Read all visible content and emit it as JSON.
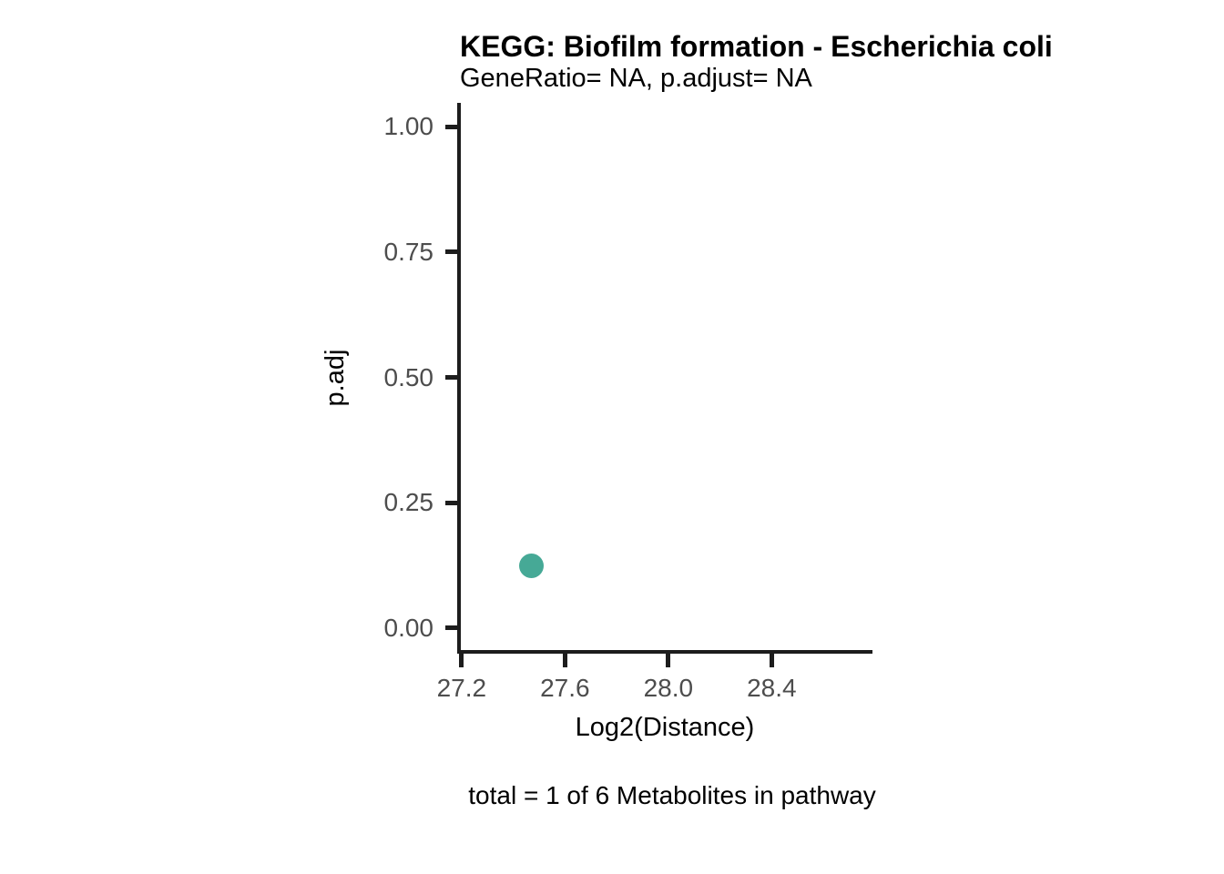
{
  "chart_data": {
    "type": "scatter",
    "title": "KEGG: Biofilm formation - Escherichia coli",
    "subtitle": "GeneRatio= NA, p.adjust= NA",
    "xlabel": "Log2(Distance)",
    "ylabel": "p.adj",
    "caption": "total = 1 of 6 Metabolites in pathway",
    "xlim": [
      27.19,
      28.79
    ],
    "ylim": [
      -0.048,
      1.048
    ],
    "grid": false,
    "legend": "none",
    "x_ticks": [
      {
        "value": 27.2,
        "label": "27.2"
      },
      {
        "value": 27.6,
        "label": "27.6"
      },
      {
        "value": 28.0,
        "label": "28.0"
      },
      {
        "value": 28.4,
        "label": "28.4"
      }
    ],
    "y_ticks": [
      {
        "value": 1.0,
        "label": "1.00"
      },
      {
        "value": 0.75,
        "label": "0.75"
      },
      {
        "value": 0.5,
        "label": "0.50"
      },
      {
        "value": 0.25,
        "label": "0.25"
      },
      {
        "value": 0.0,
        "label": "0.00"
      }
    ],
    "points": [
      {
        "x": 27.47,
        "y": 0.124
      }
    ],
    "styles": {
      "point_color": "#46A996",
      "axis_color": "#1d1d1d",
      "tick_label_color": "#4d4d4d",
      "background_color": "#ffffff"
    }
  }
}
